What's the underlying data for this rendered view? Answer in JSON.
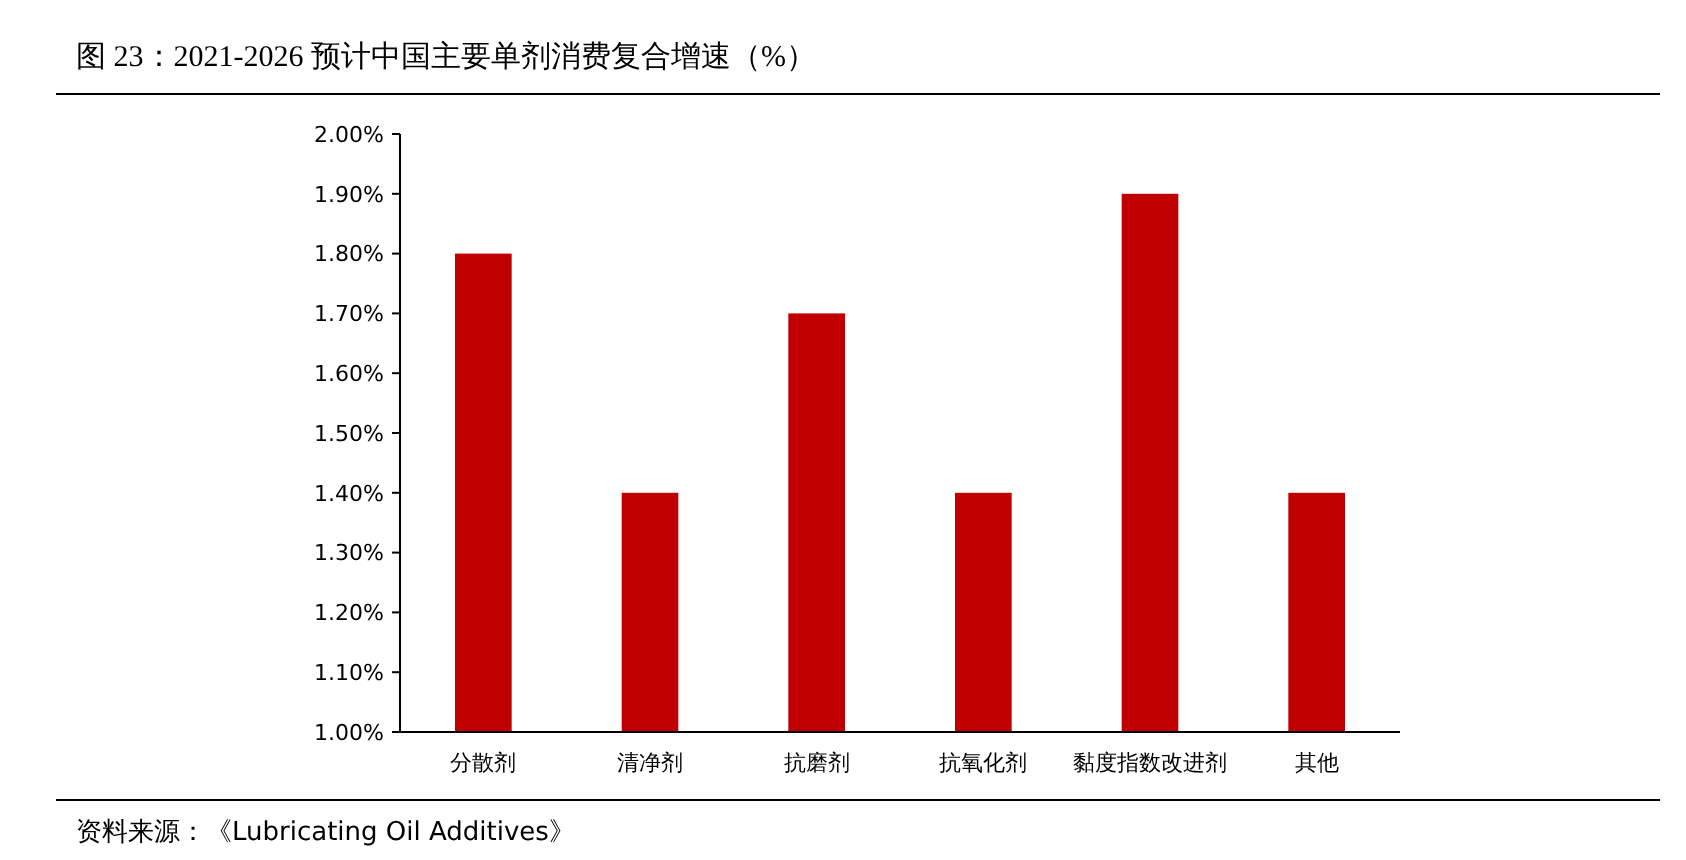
{
  "chart_data": {
    "type": "bar",
    "title": "图 23：2021-2026 预计中国主要单剂消费复合增速（%）",
    "categories": [
      "分散剂",
      "清净剂",
      "抗磨剂",
      "抗氧化剂",
      "黏度指数改进剂",
      "其他"
    ],
    "values": [
      1.8,
      1.4,
      1.7,
      1.4,
      1.9,
      1.4
    ],
    "color": "#c00000",
    "ylim": [
      1.0,
      2.0
    ],
    "yticks": [
      {
        "value": 1.0,
        "label": "1.00%"
      },
      {
        "value": 1.1,
        "label": "1.10%"
      },
      {
        "value": 1.2,
        "label": "1.20%"
      },
      {
        "value": 1.3,
        "label": "1.30%"
      },
      {
        "value": 1.4,
        "label": "1.40%"
      },
      {
        "value": 1.5,
        "label": "1.50%"
      },
      {
        "value": 1.6,
        "label": "1.60%"
      },
      {
        "value": 1.7,
        "label": "1.70%"
      },
      {
        "value": 1.8,
        "label": "1.80%"
      },
      {
        "value": 1.9,
        "label": "1.90%"
      },
      {
        "value": 2.0,
        "label": "2.00%"
      }
    ],
    "grid": false,
    "annotations": [
      "资料来源：《Lubricating Oil Additives》"
    ]
  }
}
